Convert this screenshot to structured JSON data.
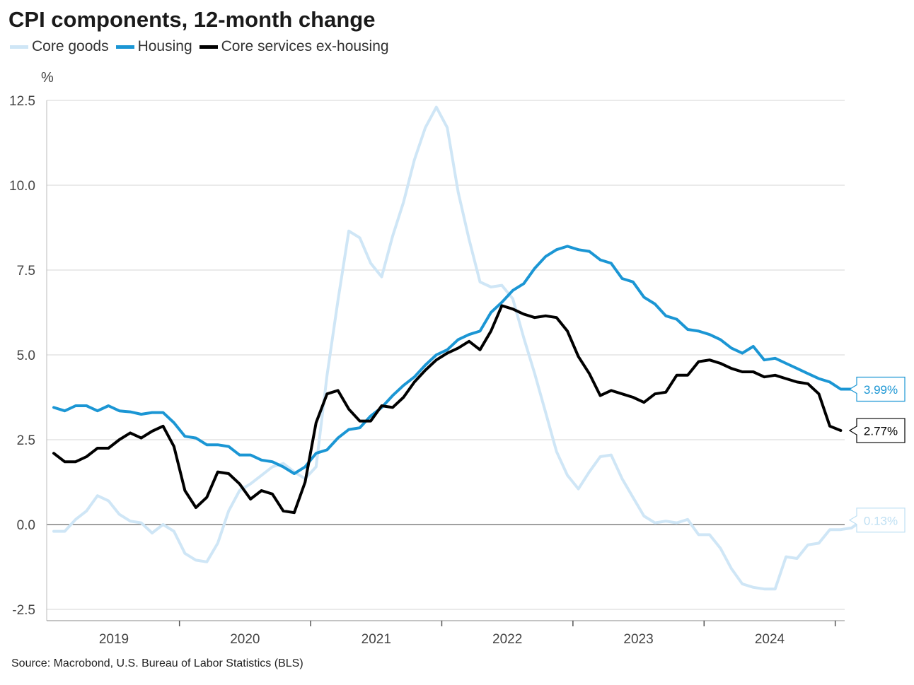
{
  "chart_data": {
    "type": "line",
    "title": "CPI components, 12-month change",
    "ylabel": "%",
    "xlabel": "",
    "source": "Source: Macrobond, U.S. Bureau of Labor Statistics (BLS)",
    "ylim": [
      -2.5,
      12.5
    ],
    "yticks": [
      -2.5,
      0.0,
      2.5,
      5.0,
      7.5,
      10.0,
      12.5
    ],
    "ytick_labels": [
      "-2.5",
      "0.0",
      "2.5",
      "5.0",
      "7.5",
      "10.0",
      "12.5"
    ],
    "xlim": [
      "2019-01",
      "2025-01"
    ],
    "xtick_labels": [
      "2019",
      "2020",
      "2021",
      "2022",
      "2023",
      "2024"
    ],
    "grid": true,
    "legend_position": "top-left",
    "series": [
      {
        "name": "Core goods",
        "color": "#cfe6f6",
        "end_label": "0.13%",
        "points": [
          [
            "2019-01",
            -0.2
          ],
          [
            "2019-02",
            -0.2
          ],
          [
            "2019-03",
            0.15
          ],
          [
            "2019-04",
            0.4
          ],
          [
            "2019-05",
            0.85
          ],
          [
            "2019-06",
            0.7
          ],
          [
            "2019-07",
            0.3
          ],
          [
            "2019-08",
            0.1
          ],
          [
            "2019-09",
            0.05
          ],
          [
            "2019-10",
            -0.25
          ],
          [
            "2019-11",
            0.0
          ],
          [
            "2019-12",
            -0.2
          ],
          [
            "2020-01",
            -0.85
          ],
          [
            "2020-02",
            -1.05
          ],
          [
            "2020-03",
            -1.1
          ],
          [
            "2020-04",
            -0.55
          ],
          [
            "2020-05",
            0.4
          ],
          [
            "2020-06",
            1.0
          ],
          [
            "2020-07",
            1.2
          ],
          [
            "2020-08",
            1.45
          ],
          [
            "2020-09",
            1.7
          ],
          [
            "2020-10",
            1.8
          ],
          [
            "2020-11",
            1.55
          ],
          [
            "2020-12",
            1.35
          ],
          [
            "2021-01",
            1.7
          ],
          [
            "2021-02",
            4.4
          ],
          [
            "2021-03",
            6.6
          ],
          [
            "2021-04",
            8.65
          ],
          [
            "2021-05",
            8.45
          ],
          [
            "2021-06",
            7.7
          ],
          [
            "2021-07",
            7.3
          ],
          [
            "2021-08",
            8.5
          ],
          [
            "2021-09",
            9.5
          ],
          [
            "2021-10",
            10.75
          ],
          [
            "2021-11",
            11.7
          ],
          [
            "2021-12",
            12.3
          ],
          [
            "2022-01",
            11.7
          ],
          [
            "2022-02",
            9.8
          ],
          [
            "2022-03",
            8.4
          ],
          [
            "2022-04",
            7.15
          ],
          [
            "2022-05",
            7.0
          ],
          [
            "2022-06",
            7.05
          ],
          [
            "2022-07",
            6.65
          ],
          [
            "2022-08",
            5.5
          ],
          [
            "2022-09",
            4.45
          ],
          [
            "2022-10",
            3.3
          ],
          [
            "2022-11",
            2.15
          ],
          [
            "2022-12",
            1.45
          ],
          [
            "2023-01",
            1.05
          ],
          [
            "2023-02",
            1.55
          ],
          [
            "2023-03",
            2.0
          ],
          [
            "2023-04",
            2.05
          ],
          [
            "2023-05",
            1.35
          ],
          [
            "2023-06",
            0.8
          ],
          [
            "2023-07",
            0.25
          ],
          [
            "2023-08",
            0.05
          ],
          [
            "2023-09",
            0.1
          ],
          [
            "2023-10",
            0.05
          ],
          [
            "2023-11",
            0.15
          ],
          [
            "2023-12",
            -0.3
          ],
          [
            "2024-01",
            -0.3
          ],
          [
            "2024-02",
            -0.7
          ],
          [
            "2024-03",
            -1.3
          ],
          [
            "2024-04",
            -1.75
          ],
          [
            "2024-05",
            -1.85
          ],
          [
            "2024-06",
            -1.9
          ],
          [
            "2024-07",
            -1.9
          ],
          [
            "2024-08",
            -0.95
          ],
          [
            "2024-09",
            -1.0
          ],
          [
            "2024-10",
            -0.6
          ],
          [
            "2024-11",
            -0.55
          ],
          [
            "2024-12",
            -0.15
          ],
          [
            "2025-01",
            -0.15
          ],
          [
            "2025-02",
            -0.1
          ],
          [
            "2025-03",
            0.13
          ]
        ]
      },
      {
        "name": "Housing",
        "color": "#1b96d4",
        "end_label": "3.99%",
        "points": [
          [
            "2019-01",
            3.45
          ],
          [
            "2019-02",
            3.35
          ],
          [
            "2019-03",
            3.5
          ],
          [
            "2019-04",
            3.5
          ],
          [
            "2019-05",
            3.35
          ],
          [
            "2019-06",
            3.5
          ],
          [
            "2019-07",
            3.35
          ],
          [
            "2019-08",
            3.32
          ],
          [
            "2019-09",
            3.25
          ],
          [
            "2019-10",
            3.3
          ],
          [
            "2019-11",
            3.3
          ],
          [
            "2019-12",
            3.0
          ],
          [
            "2020-01",
            2.6
          ],
          [
            "2020-02",
            2.55
          ],
          [
            "2020-03",
            2.35
          ],
          [
            "2020-04",
            2.35
          ],
          [
            "2020-05",
            2.3
          ],
          [
            "2020-06",
            2.05
          ],
          [
            "2020-07",
            2.05
          ],
          [
            "2020-08",
            1.9
          ],
          [
            "2020-09",
            1.85
          ],
          [
            "2020-10",
            1.7
          ],
          [
            "2020-11",
            1.5
          ],
          [
            "2020-12",
            1.7
          ],
          [
            "2021-01",
            2.1
          ],
          [
            "2021-02",
            2.2
          ],
          [
            "2021-03",
            2.55
          ],
          [
            "2021-04",
            2.8
          ],
          [
            "2021-05",
            2.85
          ],
          [
            "2021-06",
            3.2
          ],
          [
            "2021-07",
            3.45
          ],
          [
            "2021-08",
            3.8
          ],
          [
            "2021-09",
            4.1
          ],
          [
            "2021-10",
            4.35
          ],
          [
            "2021-11",
            4.7
          ],
          [
            "2021-12",
            5.0
          ],
          [
            "2022-01",
            5.15
          ],
          [
            "2022-02",
            5.45
          ],
          [
            "2022-03",
            5.6
          ],
          [
            "2022-04",
            5.7
          ],
          [
            "2022-05",
            6.25
          ],
          [
            "2022-06",
            6.55
          ],
          [
            "2022-07",
            6.9
          ],
          [
            "2022-08",
            7.1
          ],
          [
            "2022-09",
            7.55
          ],
          [
            "2022-10",
            7.9
          ],
          [
            "2022-11",
            8.1
          ],
          [
            "2022-12",
            8.2
          ],
          [
            "2023-01",
            8.1
          ],
          [
            "2023-02",
            8.05
          ],
          [
            "2023-03",
            7.8
          ],
          [
            "2023-04",
            7.7
          ],
          [
            "2023-05",
            7.25
          ],
          [
            "2023-06",
            7.15
          ],
          [
            "2023-07",
            6.7
          ],
          [
            "2023-08",
            6.5
          ],
          [
            "2023-09",
            6.15
          ],
          [
            "2023-10",
            6.05
          ],
          [
            "2023-11",
            5.75
          ],
          [
            "2023-12",
            5.7
          ],
          [
            "2024-01",
            5.6
          ],
          [
            "2024-02",
            5.45
          ],
          [
            "2024-03",
            5.2
          ],
          [
            "2024-04",
            5.05
          ],
          [
            "2024-05",
            5.25
          ],
          [
            "2024-06",
            4.85
          ],
          [
            "2024-07",
            4.9
          ],
          [
            "2024-08",
            4.75
          ],
          [
            "2024-09",
            4.6
          ],
          [
            "2024-10",
            4.45
          ],
          [
            "2024-11",
            4.3
          ],
          [
            "2024-12",
            4.2
          ],
          [
            "2025-01",
            3.99
          ],
          [
            "2025-02",
            3.99
          ]
        ]
      },
      {
        "name": "Core services ex-housing",
        "color": "#000000",
        "end_label": "2.77%",
        "points": [
          [
            "2019-01",
            2.1
          ],
          [
            "2019-02",
            1.85
          ],
          [
            "2019-03",
            1.85
          ],
          [
            "2019-04",
            2.0
          ],
          [
            "2019-05",
            2.25
          ],
          [
            "2019-06",
            2.25
          ],
          [
            "2019-07",
            2.5
          ],
          [
            "2019-08",
            2.7
          ],
          [
            "2019-09",
            2.55
          ],
          [
            "2019-10",
            2.75
          ],
          [
            "2019-11",
            2.9
          ],
          [
            "2019-12",
            2.3
          ],
          [
            "2020-01",
            1.0
          ],
          [
            "2020-02",
            0.5
          ],
          [
            "2020-03",
            0.8
          ],
          [
            "2020-04",
            1.55
          ],
          [
            "2020-05",
            1.5
          ],
          [
            "2020-06",
            1.2
          ],
          [
            "2020-07",
            0.75
          ],
          [
            "2020-08",
            1.0
          ],
          [
            "2020-09",
            0.9
          ],
          [
            "2020-10",
            0.4
          ],
          [
            "2020-11",
            0.35
          ],
          [
            "2020-12",
            1.25
          ],
          [
            "2021-01",
            3.0
          ],
          [
            "2021-02",
            3.85
          ],
          [
            "2021-03",
            3.95
          ],
          [
            "2021-04",
            3.4
          ],
          [
            "2021-05",
            3.05
          ],
          [
            "2021-06",
            3.05
          ],
          [
            "2021-07",
            3.5
          ],
          [
            "2021-08",
            3.45
          ],
          [
            "2021-09",
            3.75
          ],
          [
            "2021-10",
            4.2
          ],
          [
            "2021-11",
            4.55
          ],
          [
            "2021-12",
            4.85
          ],
          [
            "2022-01",
            5.05
          ],
          [
            "2022-02",
            5.2
          ],
          [
            "2022-03",
            5.4
          ],
          [
            "2022-04",
            5.15
          ],
          [
            "2022-05",
            5.7
          ],
          [
            "2022-06",
            6.45
          ],
          [
            "2022-07",
            6.35
          ],
          [
            "2022-08",
            6.2
          ],
          [
            "2022-09",
            6.1
          ],
          [
            "2022-10",
            6.15
          ],
          [
            "2022-11",
            6.1
          ],
          [
            "2022-12",
            5.7
          ],
          [
            "2023-01",
            4.95
          ],
          [
            "2023-02",
            4.45
          ],
          [
            "2023-03",
            3.8
          ],
          [
            "2023-04",
            3.95
          ],
          [
            "2023-05",
            3.85
          ],
          [
            "2023-06",
            3.75
          ],
          [
            "2023-07",
            3.6
          ],
          [
            "2023-08",
            3.85
          ],
          [
            "2023-09",
            3.9
          ],
          [
            "2023-10",
            4.4
          ],
          [
            "2023-11",
            4.4
          ],
          [
            "2023-12",
            4.8
          ],
          [
            "2024-01",
            4.85
          ],
          [
            "2024-02",
            4.75
          ],
          [
            "2024-03",
            4.6
          ],
          [
            "2024-04",
            4.5
          ],
          [
            "2024-05",
            4.5
          ],
          [
            "2024-06",
            4.35
          ],
          [
            "2024-07",
            4.4
          ],
          [
            "2024-08",
            4.3
          ],
          [
            "2024-09",
            4.2
          ],
          [
            "2024-10",
            4.15
          ],
          [
            "2024-11",
            3.85
          ],
          [
            "2024-12",
            2.9
          ],
          [
            "2025-01",
            2.77
          ]
        ]
      }
    ]
  }
}
